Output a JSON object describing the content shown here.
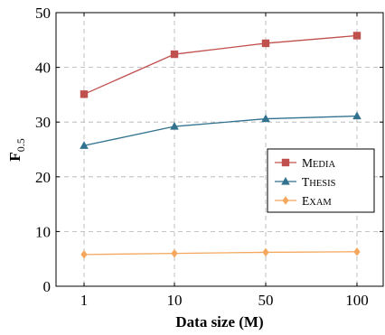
{
  "chart_data": {
    "type": "line",
    "title": "",
    "xlabel": "Data size (M)",
    "ylabel": "F",
    "ylabel_subscript": "0.5",
    "categories": [
      "1",
      "10",
      "50",
      "100"
    ],
    "ylim": [
      0,
      50
    ],
    "yticks": [
      0,
      10,
      20,
      30,
      40,
      50
    ],
    "grid": true,
    "legend_position": "right",
    "series": [
      {
        "name": "Media",
        "marker": "square",
        "color": "#c0504d",
        "values": [
          35.1,
          42.4,
          44.4,
          45.8
        ]
      },
      {
        "name": "Thesis",
        "marker": "triangle",
        "color": "#31728e",
        "values": [
          25.7,
          29.2,
          30.6,
          31.1
        ]
      },
      {
        "name": "Exam",
        "marker": "diamond",
        "color": "#f4a75d",
        "values": [
          5.8,
          6.0,
          6.2,
          6.3
        ]
      }
    ]
  }
}
